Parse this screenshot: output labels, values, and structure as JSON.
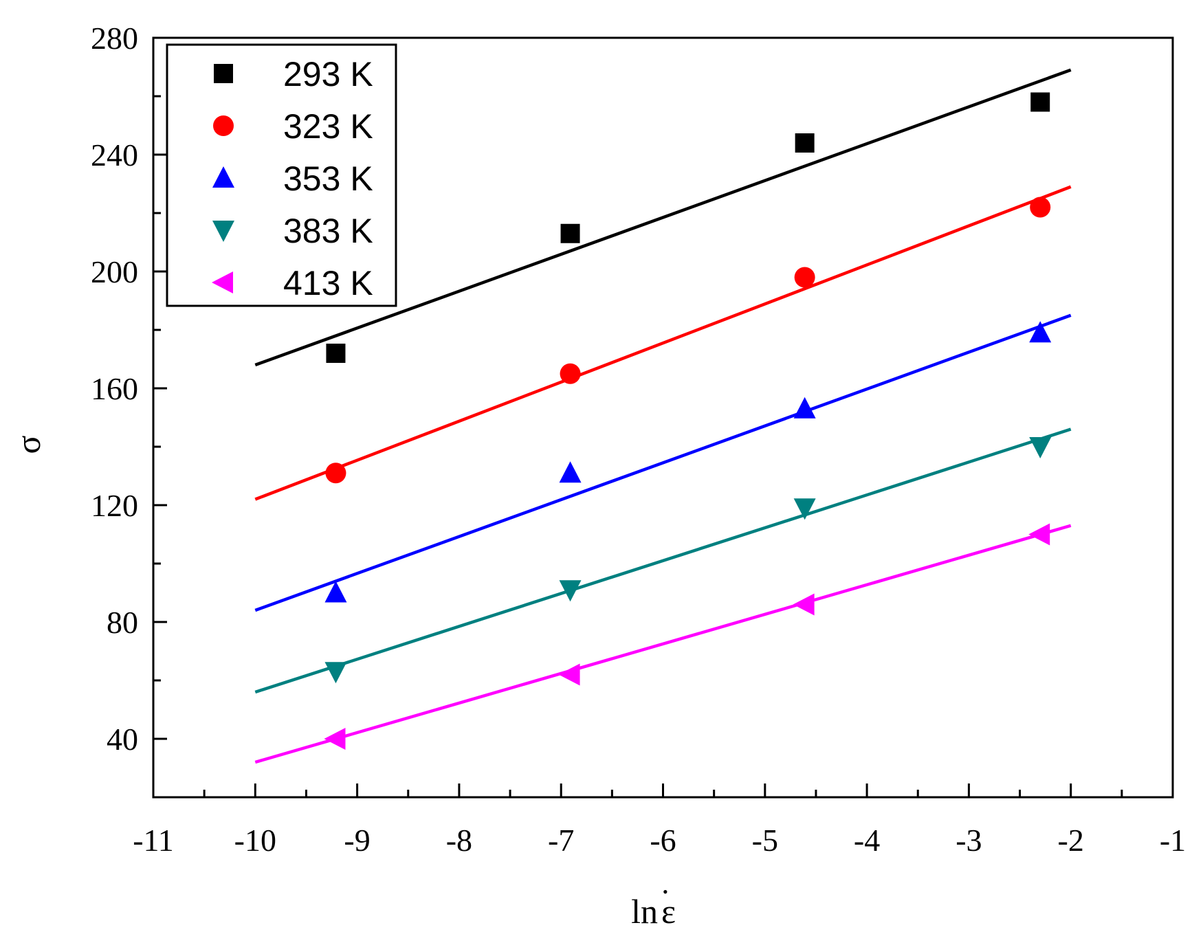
{
  "chart_data": {
    "type": "scatter",
    "title": "",
    "xlabel": "lnε",
    "xlabel_main": "ln",
    "xlabel_symbol": "ε",
    "xlabel_dot": "•",
    "ylabel": "σ",
    "xlim": [
      -11,
      -1
    ],
    "ylim": [
      20,
      280
    ],
    "xticks": [
      -11,
      -10,
      -9,
      -8,
      -7,
      -6,
      -5,
      -4,
      -3,
      -2,
      -1
    ],
    "yticks": [
      40,
      80,
      120,
      160,
      200,
      240,
      280
    ],
    "grid": false,
    "legend_position": "top-left",
    "series": [
      {
        "name": "293 K",
        "color": "#000000",
        "marker": "square",
        "x": [
          -9.21,
          -6.91,
          -4.61,
          -2.3
        ],
        "y": [
          172,
          213,
          244,
          258
        ],
        "fit": {
          "x": [
            -10,
            -2
          ],
          "y": [
            168,
            269
          ]
        }
      },
      {
        "name": "323 K",
        "color": "#ff0000",
        "marker": "circle",
        "x": [
          -9.21,
          -6.91,
          -4.61,
          -2.3
        ],
        "y": [
          131,
          165,
          198,
          222
        ],
        "fit": {
          "x": [
            -10,
            -2
          ],
          "y": [
            122,
            229
          ]
        }
      },
      {
        "name": "353 K",
        "color": "#0000ff",
        "marker": "triangle-up",
        "x": [
          -9.21,
          -6.91,
          -4.61,
          -2.3
        ],
        "y": [
          90,
          131,
          153,
          179
        ],
        "fit": {
          "x": [
            -10,
            -2
          ],
          "y": [
            84,
            185
          ]
        }
      },
      {
        "name": "383 K",
        "color": "#008080",
        "marker": "triangle-down",
        "x": [
          -9.21,
          -6.91,
          -4.61,
          -2.3
        ],
        "y": [
          63,
          91,
          119,
          140
        ],
        "fit": {
          "x": [
            -10,
            -2
          ],
          "y": [
            56,
            146
          ]
        }
      },
      {
        "name": "413 K",
        "color": "#ff00ff",
        "marker": "triangle-left",
        "x": [
          -9.21,
          -6.91,
          -4.61,
          -2.3
        ],
        "y": [
          40,
          62,
          86,
          110
        ],
        "fit": {
          "x": [
            -10,
            -2
          ],
          "y": [
            32,
            113
          ]
        }
      }
    ]
  }
}
